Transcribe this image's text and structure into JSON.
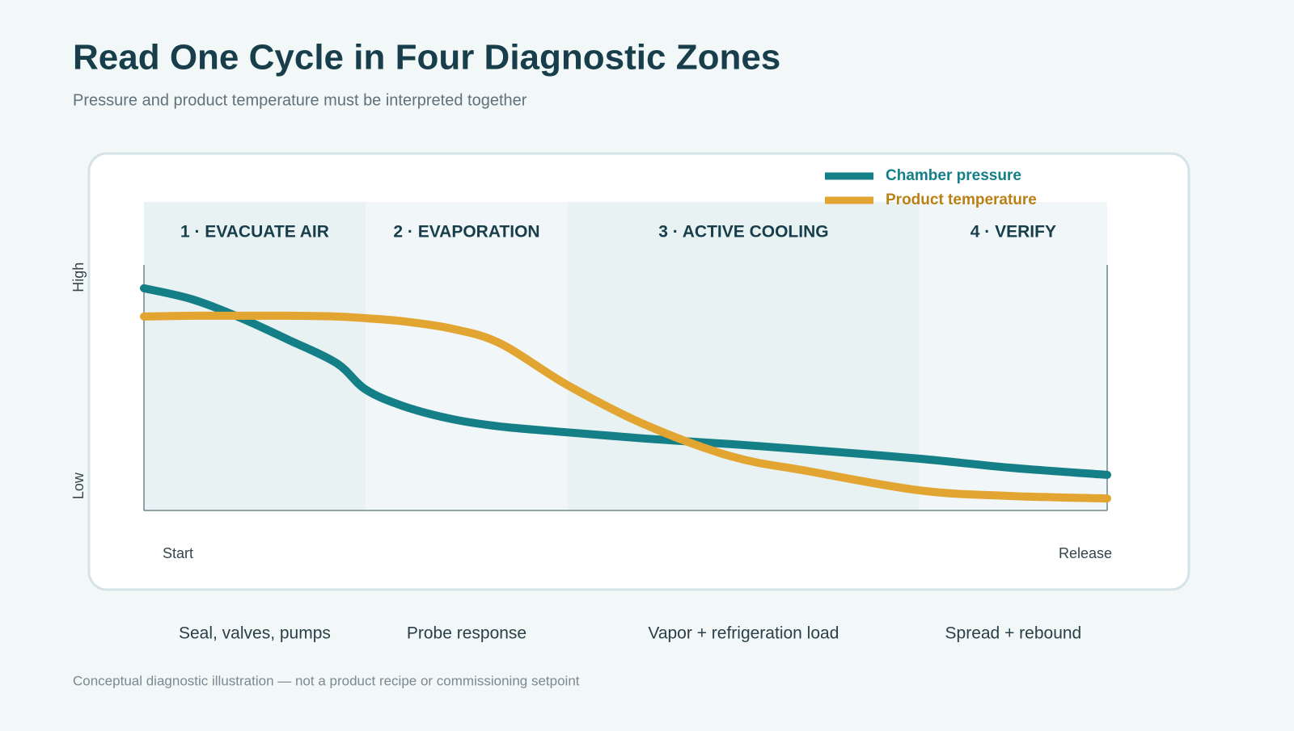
{
  "chart_data": {
    "type": "line",
    "title": "Read One Cycle in Four Diagnostic Zones",
    "subtitle": "Pressure and product temperature must be interpreted together",
    "footnote": "Conceptual diagnostic illustration — not a product recipe or commissioning setpoint",
    "xlim": [
      0,
      100
    ],
    "ylim": [
      0,
      100
    ],
    "xticks": [
      {
        "value": 0,
        "label": "Start"
      },
      {
        "value": 100,
        "label": "Release"
      }
    ],
    "yticks": [
      {
        "value": 10,
        "label": "Low"
      },
      {
        "value": 95,
        "label": "High"
      }
    ],
    "zones": [
      {
        "label": "1 · EVACUATE AIR",
        "note": "Seal, valves, pumps",
        "start": 0,
        "end": 23
      },
      {
        "label": "2 · EVAPORATION",
        "note": "Probe response",
        "start": 23,
        "end": 44
      },
      {
        "label": "3 · ACTIVE COOLING",
        "note": "Vapor + refrigeration load",
        "start": 44,
        "end": 80.5
      },
      {
        "label": "4 · VERIFY",
        "note": "Spread + rebound",
        "start": 80.5,
        "end": 100
      }
    ],
    "x": [
      0,
      5,
      10,
      15,
      20,
      23,
      27,
      32,
      37,
      44,
      52,
      61,
      69,
      80.5,
      90,
      100
    ],
    "series": [
      {
        "name": "Chamber pressure",
        "color": "#157f87",
        "values": [
          90.5,
          86,
          78.5,
          69.5,
          60,
          49.3,
          42.4,
          37.2,
          34.2,
          31.8,
          29.3,
          27,
          24.7,
          21.1,
          17.4,
          14.5
        ]
      },
      {
        "name": "Product temperature",
        "color": "#e3a531",
        "values": [
          79,
          79.3,
          79.3,
          79.3,
          79,
          78.3,
          77,
          74,
          68,
          51,
          35,
          22,
          16,
          8.2,
          5.9,
          4.9
        ]
      }
    ]
  }
}
